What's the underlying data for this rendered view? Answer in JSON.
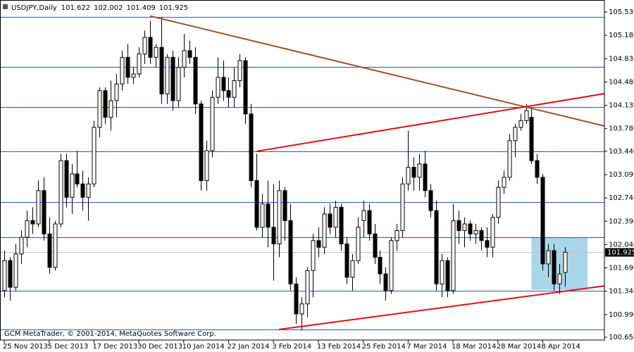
{
  "chart_data": {
    "type": "candlestick",
    "title": "USDJPY,Daily",
    "footer": "GCM MetaTrader, © 2001-2014, MetaQuotes Software Corp.",
    "categories": [
      "25 Nov 2013",
      null,
      null,
      null,
      null,
      null,
      null,
      null,
      "5 Dec 2013",
      null,
      null,
      null,
      null,
      null,
      null,
      null,
      "17 Dec 2013",
      null,
      null,
      null,
      null,
      null,
      null,
      null,
      "30 Dec 2013",
      null,
      null,
      null,
      null,
      null,
      null,
      null,
      "10 Jan 2014",
      null,
      null,
      null,
      null,
      null,
      null,
      null,
      "22 Jan 2014",
      null,
      null,
      null,
      null,
      null,
      null,
      null,
      "3 Feb 2014",
      null,
      null,
      null,
      null,
      null,
      null,
      null,
      "13 Feb 2014",
      null,
      null,
      null,
      null,
      null,
      null,
      null,
      "25 Feb 2014",
      null,
      null,
      null,
      null,
      null,
      null,
      null,
      "7 Mar 2014",
      null,
      null,
      null,
      null,
      null,
      null,
      null,
      "18 Mar 2014",
      null,
      null,
      null,
      null,
      null,
      null,
      null,
      "28 Mar 2014",
      null,
      null,
      null,
      null,
      null,
      null,
      null,
      "8 Apr 2014",
      null,
      null,
      null,
      null
    ],
    "ohlc": [
      [
        101.35,
        101.95,
        101.25,
        101.8
      ],
      [
        101.8,
        101.85,
        101.2,
        101.4
      ],
      [
        101.4,
        102.05,
        101.35,
        101.9
      ],
      [
        101.9,
        102.25,
        101.75,
        102.15
      ],
      [
        102.15,
        102.55,
        102.0,
        102.4
      ],
      [
        102.4,
        102.6,
        102.2,
        102.35
      ],
      [
        102.35,
        103.0,
        102.3,
        102.85
      ],
      [
        102.85,
        103.05,
        102.1,
        102.2
      ],
      [
        102.2,
        102.45,
        101.6,
        101.7
      ],
      [
        101.7,
        102.4,
        101.65,
        102.35
      ],
      [
        102.35,
        103.4,
        102.3,
        103.3
      ],
      [
        103.3,
        103.4,
        102.6,
        102.75
      ],
      [
        102.75,
        103.25,
        102.5,
        103.1
      ],
      [
        103.1,
        103.45,
        102.9,
        102.95
      ],
      [
        102.95,
        103.15,
        102.55,
        102.75
      ],
      [
        102.75,
        103.05,
        102.4,
        102.95
      ],
      [
        102.95,
        103.9,
        102.9,
        103.8
      ],
      [
        103.8,
        104.4,
        103.65,
        104.35
      ],
      [
        104.35,
        104.4,
        103.85,
        103.95
      ],
      [
        103.95,
        104.5,
        103.75,
        104.2
      ],
      [
        104.2,
        104.6,
        103.95,
        104.45
      ],
      [
        104.45,
        104.95,
        104.35,
        104.85
      ],
      [
        104.85,
        105.05,
        104.45,
        104.55
      ],
      [
        104.55,
        104.7,
        104.45,
        104.6
      ],
      [
        104.6,
        105.0,
        104.55,
        104.9
      ],
      [
        104.9,
        105.25,
        104.75,
        105.15
      ],
      [
        105.15,
        105.4,
        104.75,
        104.85
      ],
      [
        104.85,
        105.05,
        104.7,
        105.0
      ],
      [
        105.0,
        105.45,
        104.15,
        104.3
      ],
      [
        104.3,
        104.9,
        104.15,
        104.85
      ],
      [
        104.85,
        104.95,
        104.05,
        104.2
      ],
      [
        104.2,
        104.85,
        104.1,
        104.7
      ],
      [
        104.7,
        105.2,
        104.55,
        104.95
      ],
      [
        104.95,
        105.1,
        104.75,
        104.85
      ],
      [
        104.85,
        105.0,
        104.0,
        104.15
      ],
      [
        104.15,
        104.2,
        102.85,
        103.0
      ],
      [
        103.0,
        103.6,
        102.85,
        103.45
      ],
      [
        103.45,
        104.35,
        103.35,
        104.25
      ],
      [
        104.25,
        104.85,
        104.15,
        104.55
      ],
      [
        104.55,
        104.8,
        104.2,
        104.35
      ],
      [
        104.35,
        104.55,
        104.1,
        104.25
      ],
      [
        104.25,
        104.7,
        104.1,
        104.5
      ],
      [
        104.5,
        104.9,
        104.4,
        104.8
      ],
      [
        104.8,
        104.85,
        103.85,
        104.0
      ],
      [
        104.0,
        104.15,
        102.9,
        103.0
      ],
      [
        103.0,
        103.4,
        102.25,
        102.3
      ],
      [
        102.3,
        102.8,
        102.15,
        102.65
      ],
      [
        102.65,
        103.0,
        102.0,
        102.3
      ],
      [
        102.3,
        102.95,
        101.5,
        102.05
      ],
      [
        102.05,
        103.0,
        101.85,
        102.85
      ],
      [
        102.85,
        102.9,
        102.1,
        102.4
      ],
      [
        102.4,
        102.65,
        101.35,
        101.45
      ],
      [
        101.45,
        101.55,
        100.85,
        101.0
      ],
      [
        101.0,
        101.25,
        100.75,
        101.15
      ],
      [
        101.15,
        101.7,
        100.95,
        101.65
      ],
      [
        101.65,
        102.2,
        101.25,
        102.1
      ],
      [
        102.1,
        102.3,
        101.85,
        102.0
      ],
      [
        102.0,
        102.6,
        101.9,
        102.5
      ],
      [
        102.5,
        102.65,
        102.2,
        102.3
      ],
      [
        102.3,
        102.7,
        102.15,
        102.6
      ],
      [
        102.6,
        102.65,
        101.95,
        102.05
      ],
      [
        102.05,
        102.15,
        101.45,
        101.55
      ],
      [
        101.55,
        101.9,
        101.35,
        101.8
      ],
      [
        101.8,
        102.45,
        101.75,
        102.3
      ],
      [
        102.4,
        102.7,
        102.15,
        102.55
      ],
      [
        102.55,
        102.65,
        102.1,
        102.2
      ],
      [
        102.2,
        102.35,
        101.75,
        101.85
      ],
      [
        101.85,
        101.95,
        101.45,
        101.6
      ],
      [
        101.6,
        101.7,
        101.2,
        101.35
      ],
      [
        101.35,
        102.15,
        101.3,
        102.1
      ],
      [
        102.1,
        102.35,
        101.95,
        102.25
      ],
      [
        102.25,
        103.05,
        102.15,
        102.95
      ],
      [
        102.95,
        103.75,
        102.85,
        103.2
      ],
      [
        103.2,
        103.35,
        102.85,
        103.05
      ],
      [
        103.05,
        103.4,
        102.85,
        103.25
      ],
      [
        103.25,
        103.45,
        102.75,
        102.85
      ],
      [
        102.85,
        102.95,
        102.45,
        102.55
      ],
      [
        102.55,
        102.7,
        101.35,
        101.45
      ],
      [
        101.45,
        101.9,
        101.25,
        101.8
      ],
      [
        101.8,
        101.85,
        101.25,
        101.35
      ],
      [
        101.35,
        102.65,
        101.3,
        102.4
      ],
      [
        102.4,
        102.55,
        102.05,
        102.25
      ],
      [
        102.25,
        102.45,
        102.0,
        102.35
      ],
      [
        102.35,
        102.4,
        102.1,
        102.2
      ],
      [
        102.2,
        102.35,
        102.05,
        102.25
      ],
      [
        102.25,
        102.3,
        101.95,
        102.1
      ],
      [
        102.1,
        102.3,
        101.85,
        102.0
      ],
      [
        102.0,
        102.5,
        101.85,
        102.45
      ],
      [
        102.45,
        103.0,
        102.35,
        102.9
      ],
      [
        102.9,
        103.15,
        102.8,
        103.05
      ],
      [
        103.05,
        103.7,
        103.0,
        103.6
      ],
      [
        103.6,
        103.85,
        103.35,
        103.8
      ],
      [
        103.8,
        104.0,
        103.75,
        103.9
      ],
      [
        103.9,
        104.15,
        103.85,
        104.05
      ],
      [
        103.95,
        104.1,
        103.25,
        103.3
      ],
      [
        103.3,
        103.4,
        102.95,
        103.05
      ],
      [
        103.05,
        103.1,
        101.65,
        101.75
      ],
      [
        101.75,
        102.05,
        101.55,
        101.95
      ],
      [
        101.95,
        102.05,
        101.35,
        101.45
      ],
      [
        101.45,
        101.75,
        101.3,
        101.6
      ],
      [
        101.622,
        102.002,
        101.409,
        101.925
      ]
    ],
    "bull_color": "#ffffff",
    "bear_color": "#000000",
    "xlim": [
      -0.75,
      107
    ],
    "ylim": [
      100.608,
      105.71
    ],
    "yticks": [
      {
        "value": 105.53,
        "label": "105.530"
      },
      {
        "value": 105.18,
        "label": "105.180"
      },
      {
        "value": 104.83,
        "label": "104.830"
      },
      {
        "value": 104.48,
        "label": "104.480"
      },
      {
        "value": 104.13,
        "label": "104.130"
      },
      {
        "value": 103.78,
        "label": "103.780"
      },
      {
        "value": 103.44,
        "label": "103.440"
      },
      {
        "value": 103.09,
        "label": "103.090"
      },
      {
        "value": 102.74,
        "label": "102.740"
      },
      {
        "value": 102.39,
        "label": "102.390"
      },
      {
        "value": 102.04,
        "label": "102.040"
      },
      {
        "value": 101.69,
        "label": "101.690"
      },
      {
        "value": 101.34,
        "label": "101.340"
      },
      {
        "value": 100.99,
        "label": "100.990"
      },
      {
        "value": 100.65,
        "label": "100.650"
      }
    ],
    "grid": false,
    "hlines": {
      "color": "#2f4fd0",
      "values": [
        105.456,
        104.706,
        104.104,
        103.438,
        102.678,
        102.15,
        101.347,
        100.766
      ]
    },
    "price_line_color": "#c0c0c0",
    "trendlines": [
      {
        "x": [
          26,
          107
        ],
        "y": [
          105.47,
          103.819
        ],
        "color": "#a0522d"
      },
      {
        "x": [
          45,
          107
        ],
        "y": [
          103.44,
          104.305
        ],
        "color": "#e01010"
      },
      {
        "x": [
          49,
          107
        ],
        "y": [
          100.766,
          101.42
        ],
        "color": "#e01010"
      }
    ],
    "rectangle": {
      "x": [
        94,
        104
      ],
      "y": [
        102.15,
        101.36
      ],
      "color": "#a9d6e8"
    }
  }
}
